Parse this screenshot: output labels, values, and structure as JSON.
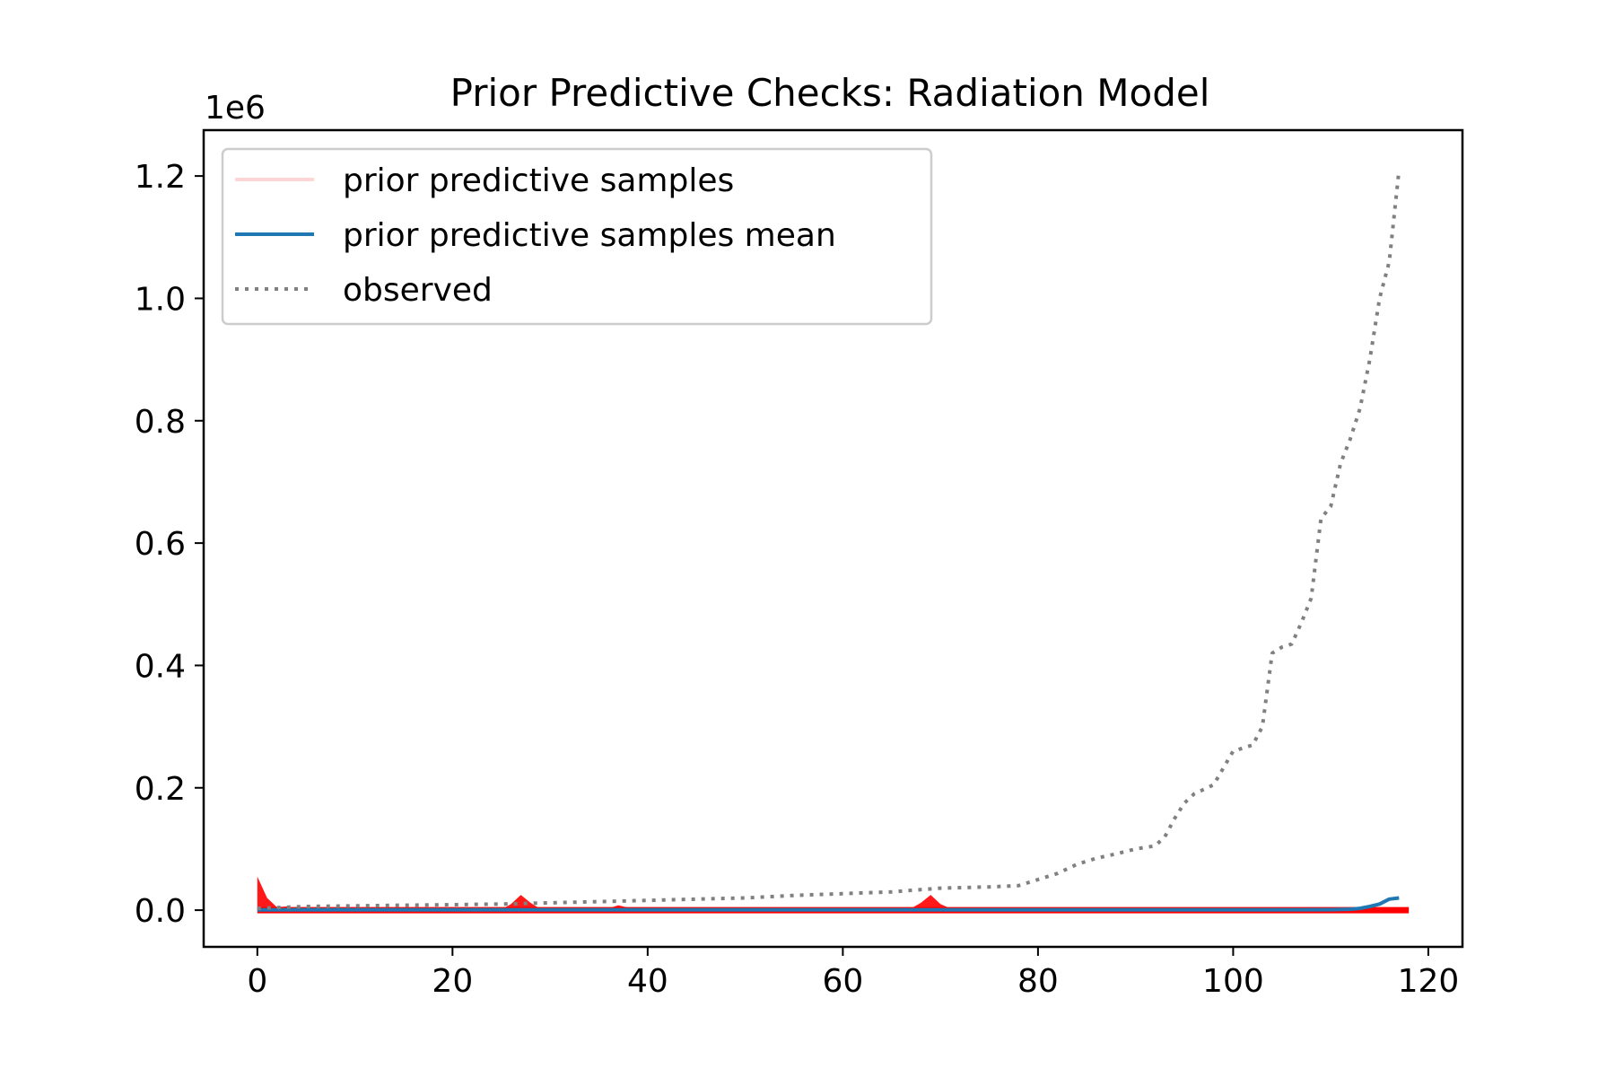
{
  "chart_data": {
    "type": "line",
    "title": "Prior Predictive Checks: Radiation Model",
    "xlabel": "",
    "ylabel": "",
    "y_offset_label": "1e6",
    "xlim": [
      -5.5,
      123.5
    ],
    "ylim": [
      -60000,
      1275000
    ],
    "x_ticks": [
      0,
      20,
      40,
      60,
      80,
      100,
      120
    ],
    "x_tick_labels": [
      "0",
      "20",
      "40",
      "60",
      "80",
      "100",
      "120"
    ],
    "y_ticks": [
      0,
      200000,
      400000,
      600000,
      800000,
      1000000,
      1200000
    ],
    "y_tick_labels": [
      "0.0",
      "0.2",
      "0.4",
      "0.6",
      "0.8",
      "1.0",
      "1.2"
    ],
    "grid": false,
    "legend_position": "upper-left",
    "colors": {
      "prior_samples": "#ff0000",
      "prior_samples_legend": "#ffd6d6",
      "mean": "#1f77b4",
      "observed": "#808080"
    },
    "series": [
      {
        "name": "prior predictive samples",
        "style": "solid",
        "color": "#ff0000",
        "band": true,
        "x": [
          0,
          1,
          2,
          3,
          4,
          5,
          6,
          7,
          8,
          10,
          15,
          20,
          25,
          26,
          27,
          28,
          29,
          30,
          35,
          36,
          37,
          38,
          39,
          40,
          41,
          42,
          45,
          50,
          55,
          60,
          65,
          67,
          68,
          69,
          70,
          71,
          72,
          75,
          80,
          85,
          90,
          91,
          92,
          93,
          95,
          100,
          105,
          110,
          115,
          118
        ],
        "y": [
          55000,
          20000,
          5000,
          6000,
          2000,
          1500,
          3000,
          1500,
          1000,
          800,
          700,
          600,
          900,
          10000,
          25000,
          12000,
          2000,
          800,
          800,
          3000,
          8000,
          4000,
          1000,
          800,
          3000,
          1000,
          600,
          500,
          500,
          500,
          600,
          3000,
          12000,
          25000,
          10000,
          3000,
          600,
          500,
          500,
          500,
          500,
          1500,
          2500,
          1000,
          600,
          600,
          700,
          800,
          1000,
          1000
        ]
      },
      {
        "name": "prior predictive samples mean",
        "style": "solid",
        "color": "#1f77b4",
        "x": [
          0,
          20,
          40,
          60,
          80,
          100,
          110,
          112,
          113,
          114,
          115,
          116,
          117
        ],
        "y": [
          500,
          500,
          500,
          500,
          500,
          500,
          800,
          1500,
          3000,
          6000,
          10000,
          18000,
          20000
        ]
      },
      {
        "name": "observed",
        "style": "dotted",
        "color": "#808080",
        "x": [
          0,
          5,
          10,
          15,
          20,
          25,
          30,
          35,
          40,
          45,
          50,
          55,
          60,
          65,
          70,
          75,
          78,
          80,
          82,
          84,
          86,
          88,
          90,
          92,
          93,
          94,
          95,
          96,
          98,
          100,
          102,
          103,
          104,
          105,
          106,
          107,
          108,
          109,
          110,
          111,
          112,
          113,
          114,
          115,
          116,
          117
        ],
        "y": [
          3000,
          6000,
          7000,
          8000,
          9000,
          10000,
          12000,
          14000,
          16000,
          18000,
          20000,
          24000,
          27000,
          30000,
          36000,
          38000,
          40000,
          50000,
          60000,
          75000,
          85000,
          92000,
          100000,
          105000,
          120000,
          150000,
          175000,
          190000,
          205000,
          260000,
          270000,
          300000,
          420000,
          430000,
          435000,
          470000,
          510000,
          640000,
          660000,
          730000,
          770000,
          820000,
          900000,
          1000000,
          1060000,
          1210000
        ]
      }
    ]
  }
}
